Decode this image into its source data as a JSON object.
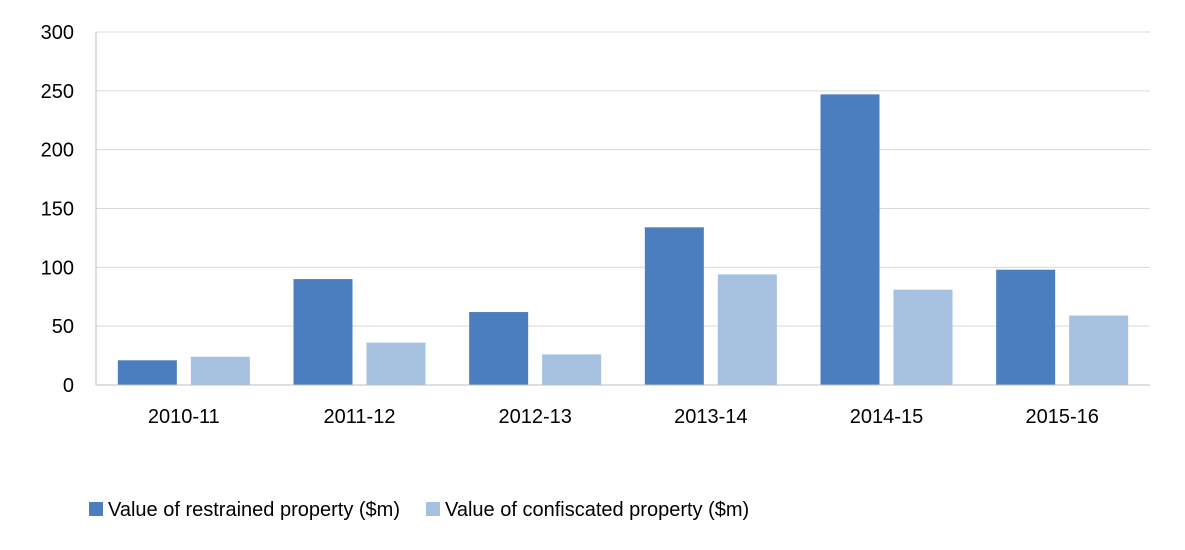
{
  "colors": {
    "restrained": "#4A7EBF",
    "confiscated": "#A6C0E0",
    "gridline": "#D9D9D9",
    "axis": "#BFBFBF",
    "text": "#000000"
  },
  "chart_data": {
    "type": "bar",
    "title": "",
    "xlabel": "",
    "ylabel": "",
    "ylim": [
      0,
      300
    ],
    "yticks": [
      0,
      50,
      100,
      150,
      200,
      250,
      300
    ],
    "categories": [
      "2010-11",
      "2011-12",
      "2012-13",
      "2013-14",
      "2014-15",
      "2015-16"
    ],
    "series": [
      {
        "name": "Value of restrained property ($m)",
        "color_key": "restrained",
        "values": [
          21,
          90,
          62,
          134,
          247,
          98
        ]
      },
      {
        "name": "Value of confiscated property ($m)",
        "color_key": "confiscated",
        "values": [
          24,
          36,
          26,
          94,
          81,
          59
        ]
      }
    ],
    "legend_position": "bottom",
    "grid": true
  }
}
